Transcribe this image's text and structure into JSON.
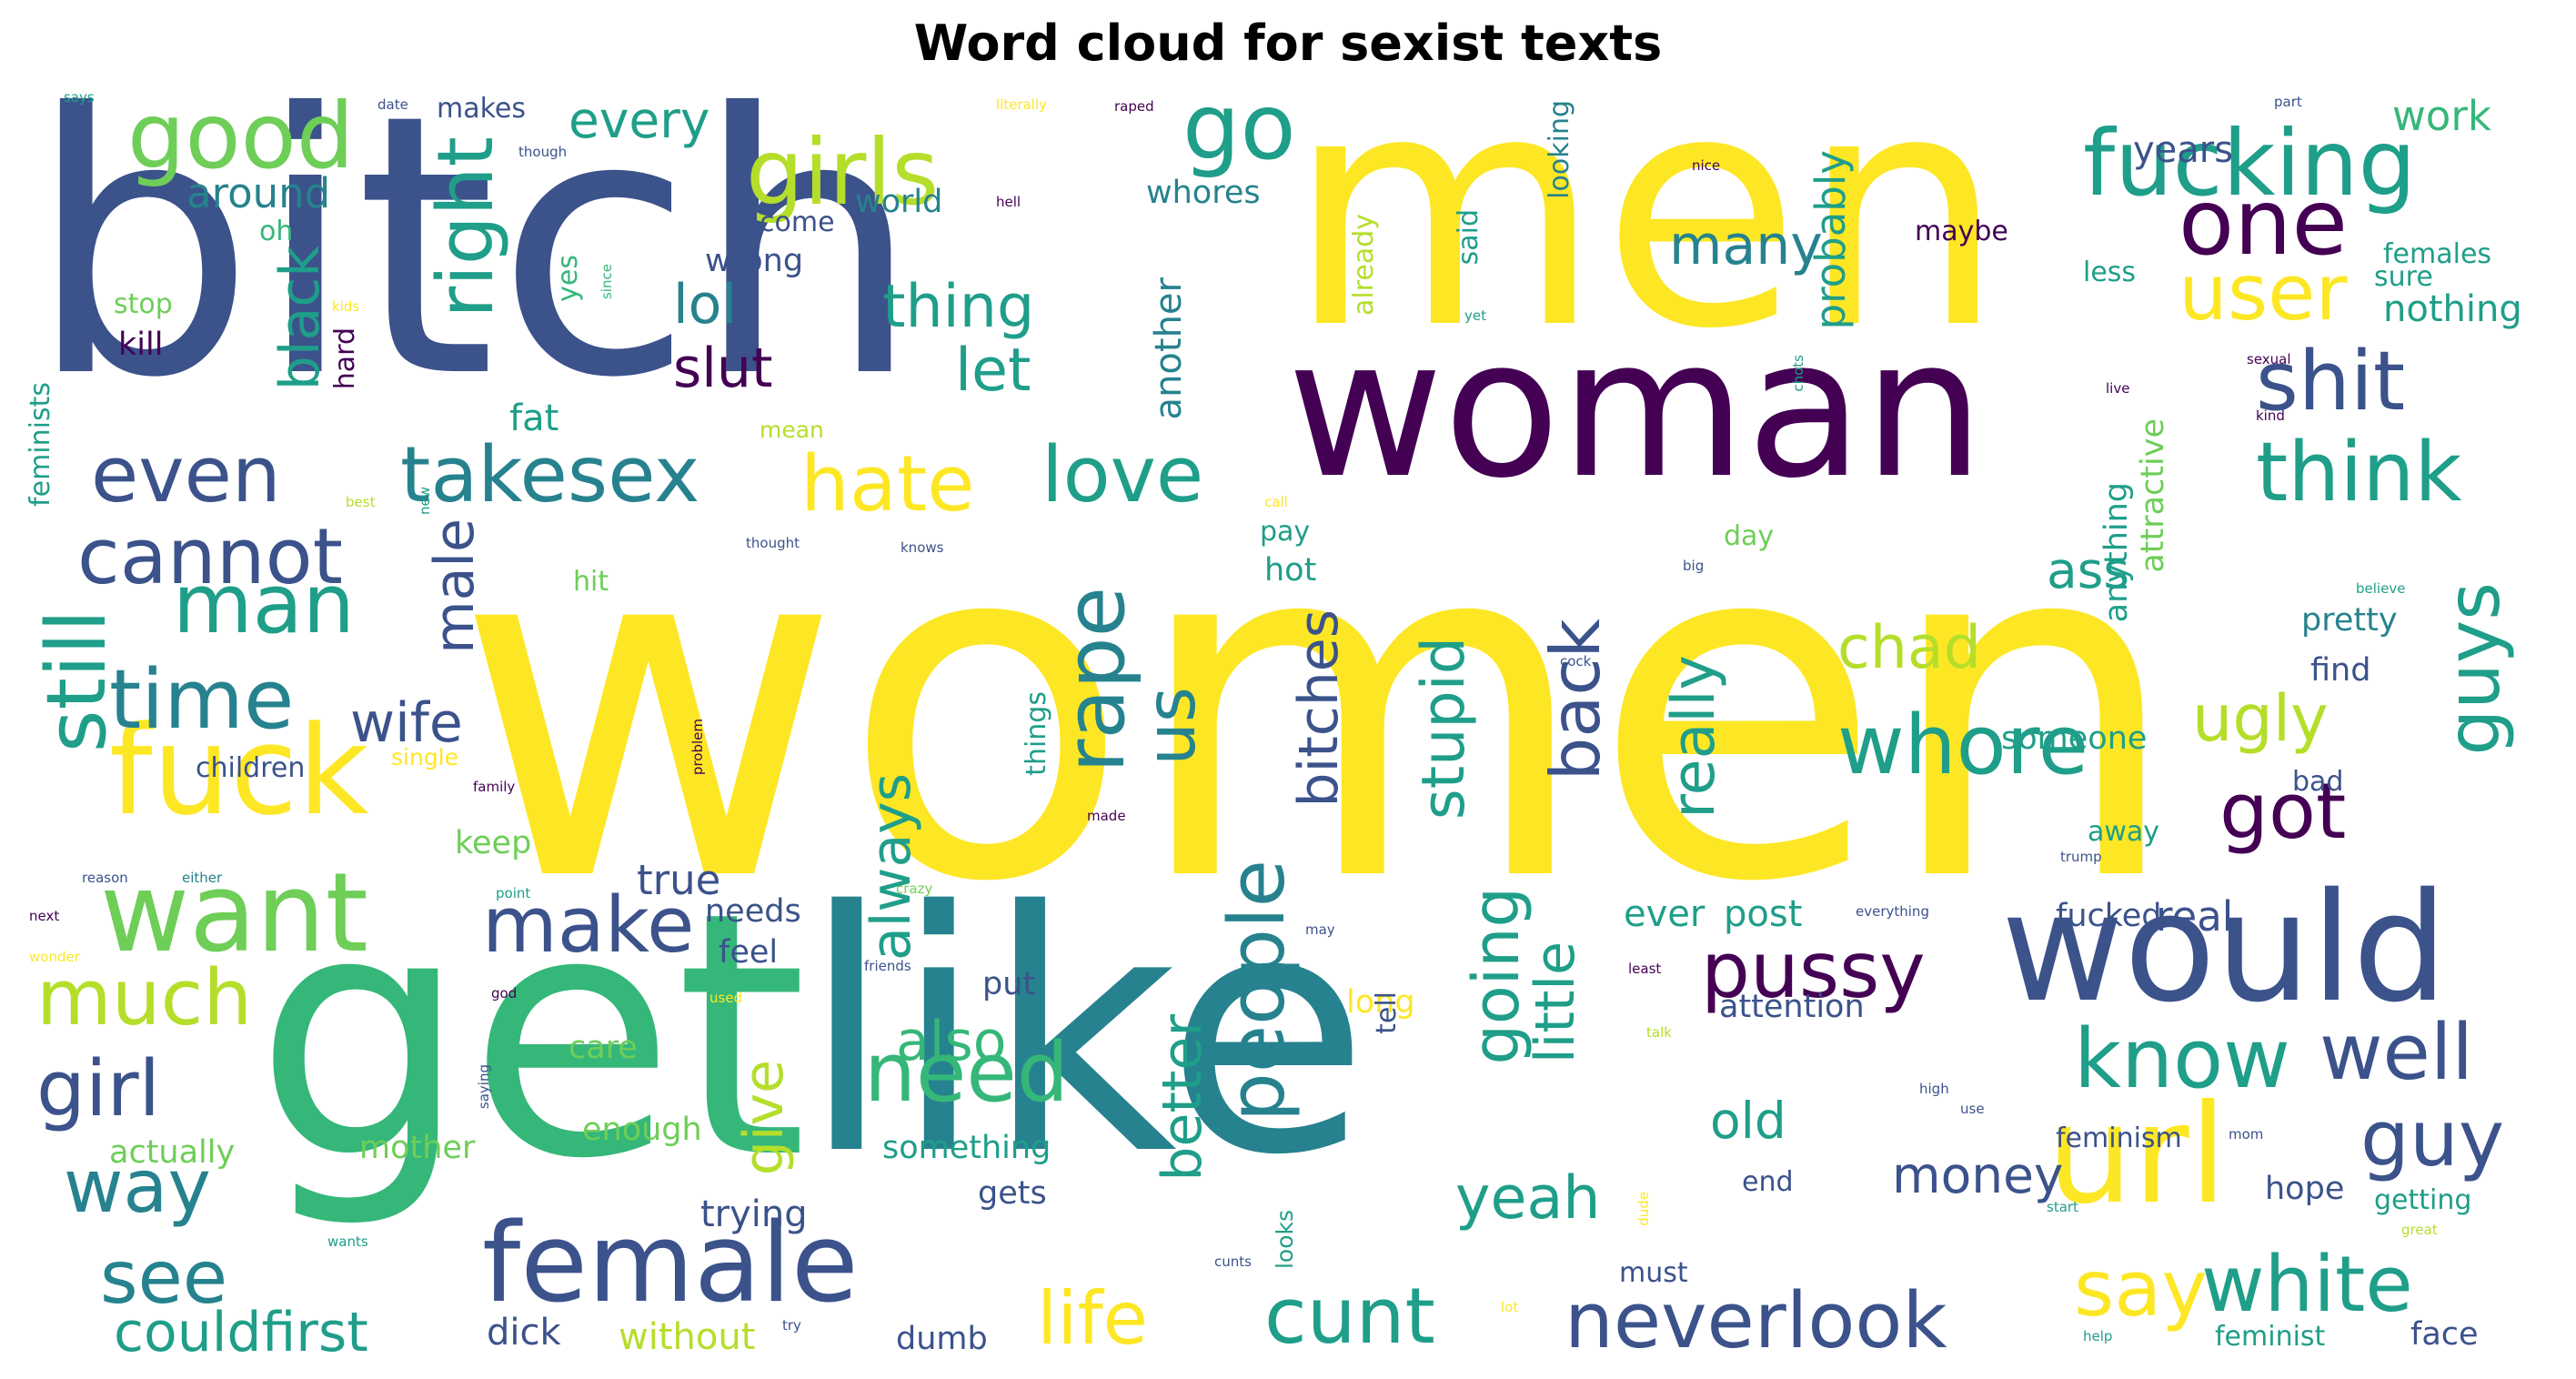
{
  "title": "Word cloud for sexist texts",
  "colors": {
    "c1": "#3b528b",
    "c2": "#440154",
    "c3": "#31688e",
    "c4": "#26828e",
    "c5": "#1f9e89",
    "c6": "#35b779",
    "c7": "#6ece58",
    "c8": "#b5de2b",
    "c9": "#fde725"
  },
  "words": [
    {
      "t": "women",
      "c": "c9",
      "s": 10
    },
    {
      "t": "bitch",
      "c": "c1",
      "s": 9
    },
    {
      "t": "men",
      "c": "c9",
      "s": 9
    },
    {
      "t": "like",
      "c": "c4",
      "s": 9
    },
    {
      "t": "get",
      "c": "c6",
      "s": 9
    },
    {
      "t": "woman",
      "c": "c2",
      "s": 8
    },
    {
      "t": "would",
      "c": "c1",
      "s": 7
    },
    {
      "t": "url",
      "c": "c9",
      "s": 7
    },
    {
      "t": "fuck",
      "c": "c9",
      "s": 6
    },
    {
      "t": "female",
      "c": "c1",
      "s": 6
    },
    {
      "t": "want",
      "c": "c7",
      "s": 6
    },
    {
      "t": "good",
      "c": "c7",
      "s": 6
    },
    {
      "t": "girls",
      "c": "c8",
      "s": 6
    },
    {
      "t": "fucking",
      "c": "c5",
      "s": 6
    },
    {
      "t": "one",
      "c": "c2",
      "s": 6
    },
    {
      "t": "go",
      "c": "c5",
      "s": 6
    },
    {
      "t": "user",
      "c": "c9",
      "s": 5
    },
    {
      "t": "man",
      "c": "c5",
      "s": 5
    },
    {
      "t": "time",
      "c": "c4",
      "s": 5
    },
    {
      "t": "still",
      "c": "c5",
      "s": 5
    },
    {
      "t": "even",
      "c": "c1",
      "s": 5
    },
    {
      "t": "cannot",
      "c": "c1",
      "s": 5
    },
    {
      "t": "shit",
      "c": "c1",
      "s": 5
    },
    {
      "t": "think",
      "c": "c5",
      "s": 5
    },
    {
      "t": "right",
      "c": "c5",
      "s": 5
    },
    {
      "t": "takesex",
      "c": "c4",
      "s": 5
    },
    {
      "t": "hate",
      "c": "c9",
      "s": 5
    },
    {
      "t": "love",
      "c": "c5",
      "s": 5
    },
    {
      "t": "whore",
      "c": "c5",
      "s": 5
    },
    {
      "t": "got",
      "c": "c2",
      "s": 5
    },
    {
      "t": "guys",
      "c": "c5",
      "s": 5
    },
    {
      "t": "rape",
      "c": "c4",
      "s": 5
    },
    {
      "t": "pussy",
      "c": "c2",
      "s": 5
    },
    {
      "t": "know",
      "c": "c5",
      "s": 5
    },
    {
      "t": "well",
      "c": "c1",
      "s": 5
    },
    {
      "t": "guy",
      "c": "c1",
      "s": 5
    },
    {
      "t": "make",
      "c": "c1",
      "s": 5
    },
    {
      "t": "much",
      "c": "c8",
      "s": 5
    },
    {
      "t": "girl",
      "c": "c1",
      "s": 5
    },
    {
      "t": "way",
      "c": "c4",
      "s": 5
    },
    {
      "t": "see",
      "c": "c4",
      "s": 5
    },
    {
      "t": "need",
      "c": "c6",
      "s": 5
    },
    {
      "t": "people",
      "c": "c4",
      "s": 5
    },
    {
      "t": "life",
      "c": "c9",
      "s": 5
    },
    {
      "t": "cunt",
      "c": "c5",
      "s": 5
    },
    {
      "t": "neverlook",
      "c": "c1",
      "s": 5
    },
    {
      "t": "say",
      "c": "c9",
      "s": 5
    },
    {
      "t": "white",
      "c": "c5",
      "s": 5
    },
    {
      "t": "couldfirst",
      "c": "c5",
      "s": 4
    },
    {
      "t": "back",
      "c": "c1",
      "s": 4
    },
    {
      "t": "going",
      "c": "c5",
      "s": 4
    },
    {
      "t": "stupid",
      "c": "c5",
      "s": 4
    },
    {
      "t": "bitches",
      "c": "c1",
      "s": 4
    },
    {
      "t": "always",
      "c": "c5",
      "s": 4
    },
    {
      "t": "us",
      "c": "c4",
      "s": 4
    },
    {
      "t": "really",
      "c": "c5",
      "s": 4
    },
    {
      "t": "chad",
      "c": "c8",
      "s": 4
    },
    {
      "t": "ugly",
      "c": "c8",
      "s": 4
    },
    {
      "t": "lol",
      "c": "c4",
      "s": 4
    },
    {
      "t": "thing",
      "c": "c5",
      "s": 4
    },
    {
      "t": "slut",
      "c": "c2",
      "s": 4
    },
    {
      "t": "let",
      "c": "c5",
      "s": 4
    },
    {
      "t": "black",
      "c": "c5",
      "s": 4
    },
    {
      "t": "every",
      "c": "c5",
      "s": 4
    },
    {
      "t": "many",
      "c": "c4",
      "s": 4
    },
    {
      "t": "wife",
      "c": "c1",
      "s": 4
    },
    {
      "t": "male",
      "c": "c1",
      "s": 4
    },
    {
      "t": "ass",
      "c": "c5",
      "s": 4
    },
    {
      "t": "little",
      "c": "c5",
      "s": 4
    },
    {
      "t": "better",
      "c": "c5",
      "s": 4
    },
    {
      "t": "give",
      "c": "c8",
      "s": 4
    },
    {
      "t": "also",
      "c": "c6",
      "s": 4
    },
    {
      "t": "yeah",
      "c": "c5",
      "s": 4
    },
    {
      "t": "money",
      "c": "c1",
      "s": 4
    },
    {
      "t": "old",
      "c": "c5",
      "s": 4
    },
    {
      "t": "around",
      "c": "c4",
      "s": 3
    },
    {
      "t": "work",
      "c": "c6",
      "s": 3
    },
    {
      "t": "years",
      "c": "c1",
      "s": 3
    },
    {
      "t": "nothing",
      "c": "c5",
      "s": 3
    },
    {
      "t": "females",
      "c": "c5",
      "s": 3
    },
    {
      "t": "probably",
      "c": "c5",
      "s": 3
    },
    {
      "t": "another",
      "c": "c4",
      "s": 3
    },
    {
      "t": "hot",
      "c": "c5",
      "s": 3
    },
    {
      "t": "fat",
      "c": "c5",
      "s": 3
    },
    {
      "t": "pretty",
      "c": "c4",
      "s": 3
    },
    {
      "t": "find",
      "c": "c1",
      "s": 3
    },
    {
      "t": "someone",
      "c": "c5",
      "s": 3
    },
    {
      "t": "anything",
      "c": "c5",
      "s": 3
    },
    {
      "t": "attractive",
      "c": "c7",
      "s": 3
    },
    {
      "t": "true",
      "c": "c1",
      "s": 3
    },
    {
      "t": "needs",
      "c": "c1",
      "s": 3
    },
    {
      "t": "feel",
      "c": "c1",
      "s": 3
    },
    {
      "t": "put",
      "c": "c1",
      "s": 3
    },
    {
      "t": "ever",
      "c": "c5",
      "s": 3
    },
    {
      "t": "post",
      "c": "c5",
      "s": 3
    },
    {
      "t": "real",
      "c": "c1",
      "s": 3
    },
    {
      "t": "fucked",
      "c": "c1",
      "s": 3
    },
    {
      "t": "attention",
      "c": "c1",
      "s": 3
    },
    {
      "t": "long",
      "c": "c9",
      "s": 3
    },
    {
      "t": "care",
      "c": "c7",
      "s": 3
    },
    {
      "t": "enough",
      "c": "c7",
      "s": 3
    },
    {
      "t": "mother",
      "c": "c7",
      "s": 3
    },
    {
      "t": "actually",
      "c": "c7",
      "s": 3
    },
    {
      "t": "something",
      "c": "c5",
      "s": 3
    },
    {
      "t": "gets",
      "c": "c1",
      "s": 3
    },
    {
      "t": "trying",
      "c": "c1",
      "s": 3
    },
    {
      "t": "feminism",
      "c": "c1",
      "s": 3
    },
    {
      "t": "hope",
      "c": "c1",
      "s": 3
    },
    {
      "t": "getting",
      "c": "c5",
      "s": 3
    },
    {
      "t": "end",
      "c": "c1",
      "s": 3
    },
    {
      "t": "must",
      "c": "c1",
      "s": 3
    },
    {
      "t": "dumb",
      "c": "c1",
      "s": 3
    },
    {
      "t": "without",
      "c": "c8",
      "s": 3
    },
    {
      "t": "dick",
      "c": "c1",
      "s": 3
    },
    {
      "t": "feminist",
      "c": "c5",
      "s": 3
    },
    {
      "t": "face",
      "c": "c1",
      "s": 3
    },
    {
      "t": "children",
      "c": "c1",
      "s": 3
    },
    {
      "t": "keep",
      "c": "c7",
      "s": 3
    },
    {
      "t": "kill",
      "c": "c2",
      "s": 3
    },
    {
      "t": "stop",
      "c": "c7",
      "s": 3
    },
    {
      "t": "wrong",
      "c": "c1",
      "s": 3
    },
    {
      "t": "world",
      "c": "c4",
      "s": 3
    },
    {
      "t": "whores",
      "c": "c4",
      "s": 3
    },
    {
      "t": "makes",
      "c": "c1",
      "s": 3
    },
    {
      "t": "come",
      "c": "c1",
      "s": 2
    },
    {
      "t": "oh",
      "c": "c6",
      "s": 2
    },
    {
      "t": "hard",
      "c": "c2",
      "s": 2
    },
    {
      "t": "yes",
      "c": "c6",
      "s": 2
    },
    {
      "t": "said",
      "c": "c5",
      "s": 2
    },
    {
      "t": "looking",
      "c": "c4",
      "s": 2
    },
    {
      "t": "already",
      "c": "c8",
      "s": 2
    },
    {
      "t": "maybe",
      "c": "c2",
      "s": 2
    },
    {
      "t": "less",
      "c": "c5",
      "s": 2
    },
    {
      "t": "sure",
      "c": "c5",
      "s": 2
    },
    {
      "t": "day",
      "c": "c7",
      "s": 2
    },
    {
      "t": "pay",
      "c": "c5",
      "s": 2
    },
    {
      "t": "hit",
      "c": "c7",
      "s": 2
    },
    {
      "t": "mean",
      "c": "c8",
      "s": 2
    },
    {
      "t": "single",
      "c": "c9",
      "s": 2
    },
    {
      "t": "things",
      "c": "c5",
      "s": 2
    },
    {
      "t": "away",
      "c": "c5",
      "s": 2
    },
    {
      "t": "bad",
      "c": "c1",
      "s": 2
    },
    {
      "t": "tell",
      "c": "c1",
      "s": 2
    },
    {
      "t": "looks",
      "c": "c5",
      "s": 2
    },
    {
      "t": "feminists",
      "c": "c5",
      "s": 2
    },
    {
      "t": "says",
      "c": "c5",
      "s": 1
    },
    {
      "t": "date",
      "c": "c1",
      "s": 1
    },
    {
      "t": "though",
      "c": "c1",
      "s": 1
    },
    {
      "t": "literally",
      "c": "c9",
      "s": 1
    },
    {
      "t": "raped",
      "c": "c2",
      "s": 1
    },
    {
      "t": "part",
      "c": "c1",
      "s": 1
    },
    {
      "t": "nice",
      "c": "c2",
      "s": 1
    },
    {
      "t": "hell",
      "c": "c2",
      "s": 1
    },
    {
      "t": "kids",
      "c": "c9",
      "s": 1
    },
    {
      "t": "since",
      "c": "c6",
      "s": 1
    },
    {
      "t": "yet",
      "c": "c5",
      "s": 1
    },
    {
      "t": "chots",
      "c": "c5",
      "s": 1
    },
    {
      "t": "sexual",
      "c": "c2",
      "s": 1
    },
    {
      "t": "live",
      "c": "c2",
      "s": 1
    },
    {
      "t": "kind",
      "c": "c2",
      "s": 1
    },
    {
      "t": "call",
      "c": "c9",
      "s": 1
    },
    {
      "t": "best",
      "c": "c8",
      "s": 1
    },
    {
      "t": "thought",
      "c": "c1",
      "s": 1
    },
    {
      "t": "knows",
      "c": "c1",
      "s": 1
    },
    {
      "t": "believe",
      "c": "c5",
      "s": 1
    },
    {
      "t": "big",
      "c": "c1",
      "s": 1
    },
    {
      "t": "new",
      "c": "c5",
      "s": 1
    },
    {
      "t": "cock",
      "c": "c1",
      "s": 1
    },
    {
      "t": "problem",
      "c": "c2",
      "s": 1
    },
    {
      "t": "family",
      "c": "c2",
      "s": 1
    },
    {
      "t": "made",
      "c": "c2",
      "s": 1
    },
    {
      "t": "reason",
      "c": "c1",
      "s": 1
    },
    {
      "t": "either",
      "c": "c4",
      "s": 1
    },
    {
      "t": "crazy",
      "c": "c7",
      "s": 1
    },
    {
      "t": "next",
      "c": "c2",
      "s": 1
    },
    {
      "t": "point",
      "c": "c5",
      "s": 1
    },
    {
      "t": "wonder",
      "c": "c9",
      "s": 1
    },
    {
      "t": "friends",
      "c": "c1",
      "s": 1
    },
    {
      "t": "used",
      "c": "c9",
      "s": 1
    },
    {
      "t": "may",
      "c": "c1",
      "s": 1
    },
    {
      "t": "everything",
      "c": "c1",
      "s": 1
    },
    {
      "t": "trump",
      "c": "c1",
      "s": 1
    },
    {
      "t": "god",
      "c": "c2",
      "s": 1
    },
    {
      "t": "least",
      "c": "c2",
      "s": 1
    },
    {
      "t": "talk",
      "c": "c8",
      "s": 1
    },
    {
      "t": "saying",
      "c": "c1",
      "s": 1
    },
    {
      "t": "high",
      "c": "c1",
      "s": 1
    },
    {
      "t": "use",
      "c": "c1",
      "s": 1
    },
    {
      "t": "mom",
      "c": "c1",
      "s": 1
    },
    {
      "t": "dude",
      "c": "c9",
      "s": 1
    },
    {
      "t": "start",
      "c": "c5",
      "s": 1
    },
    {
      "t": "great",
      "c": "c8",
      "s": 1
    },
    {
      "t": "wants",
      "c": "c5",
      "s": 1
    },
    {
      "t": "cunts",
      "c": "c1",
      "s": 1
    },
    {
      "t": "lot",
      "c": "c9",
      "s": 1
    },
    {
      "t": "try",
      "c": "c1",
      "s": 1
    },
    {
      "t": "help",
      "c": "c5",
      "s": 1
    }
  ]
}
